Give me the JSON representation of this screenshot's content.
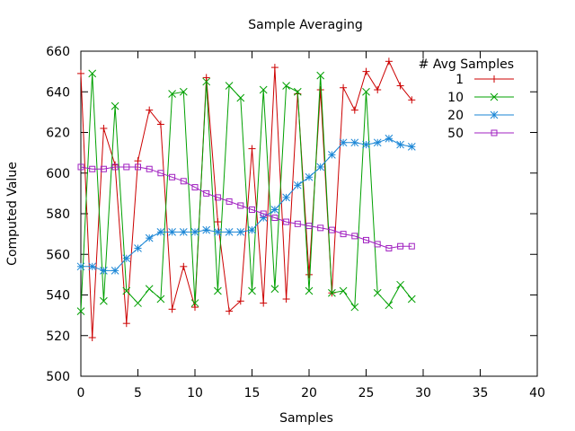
{
  "chart_data": {
    "type": "line",
    "title": "Sample Averaging",
    "xlabel": "Samples",
    "ylabel": "Computed Value",
    "xlim": [
      0,
      40
    ],
    "ylim": [
      500,
      660
    ],
    "xticks": [
      0,
      5,
      10,
      15,
      20,
      25,
      30,
      35,
      40
    ],
    "yticks": [
      500,
      520,
      540,
      560,
      580,
      600,
      620,
      640,
      660
    ],
    "grid": false,
    "legend_title": "# Avg Samples",
    "legend_position": "top-right",
    "x": [
      0,
      1,
      2,
      3,
      4,
      5,
      6,
      7,
      8,
      9,
      10,
      11,
      12,
      13,
      14,
      15,
      16,
      17,
      18,
      19,
      20,
      21,
      22,
      23,
      24,
      25,
      26,
      27,
      28,
      29
    ],
    "series": [
      {
        "name": "1",
        "color": "#cc0000",
        "marker": "plus",
        "values": [
          649,
          519,
          622,
          604,
          526,
          606,
          631,
          624,
          533,
          554,
          534,
          647,
          576,
          532,
          537,
          612,
          536,
          652,
          538,
          639,
          550,
          641,
          541,
          642,
          631,
          650,
          641,
          655,
          643,
          636
        ]
      },
      {
        "name": "10",
        "color": "#00a000",
        "marker": "cross",
        "values": [
          532,
          649,
          537,
          633,
          542,
          536,
          543,
          538,
          639,
          640,
          536,
          645,
          542,
          643,
          637,
          542,
          641,
          543,
          643,
          640,
          542,
          648,
          541,
          542,
          534,
          640,
          541,
          535,
          545,
          538
        ]
      },
      {
        "name": "20",
        "color": "#1a86d6",
        "marker": "star",
        "values": [
          554,
          554,
          552,
          552,
          558,
          563,
          568,
          571,
          571,
          571,
          571,
          572,
          571,
          571,
          571,
          572,
          578,
          582,
          588,
          594,
          598,
          603,
          609,
          615,
          615,
          614,
          615,
          617,
          614,
          613
        ]
      },
      {
        "name": "50",
        "color": "#a020c0",
        "marker": "square",
        "values": [
          603,
          602,
          602,
          603,
          603,
          603,
          602,
          600,
          598,
          596,
          593,
          590,
          588,
          586,
          584,
          582,
          580,
          578,
          576,
          575,
          574,
          573,
          572,
          570,
          569,
          567,
          565,
          563,
          564,
          564
        ]
      }
    ]
  }
}
